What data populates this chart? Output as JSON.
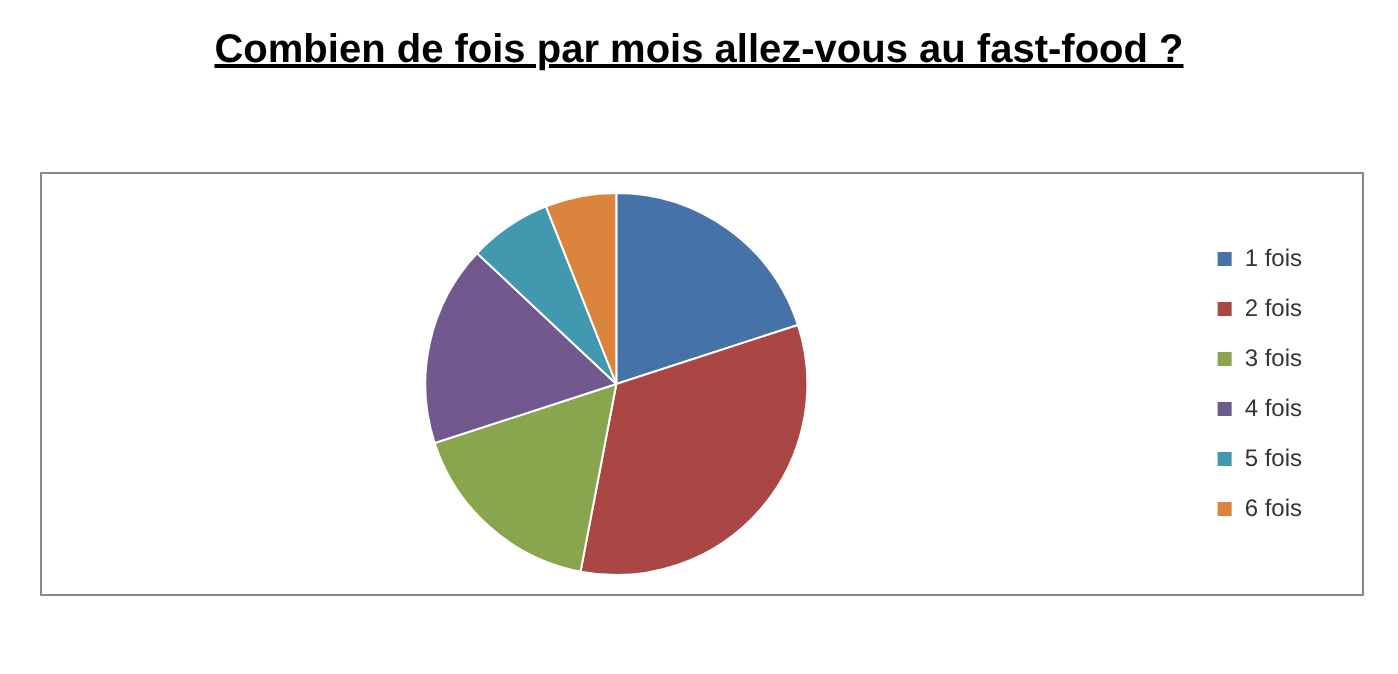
{
  "chart_data": {
    "type": "pie",
    "title": "Combien de fois par mois allez-vous au fast-food ?",
    "categories": [
      "1 fois",
      "2 fois",
      "3 fois",
      "4 fois",
      "5 fois",
      "6 fois"
    ],
    "values": [
      20,
      33,
      17,
      17,
      7,
      6
    ],
    "colors": [
      "#4572a7",
      "#aa4643",
      "#89a54e",
      "#71588f",
      "#4198af",
      "#db843d"
    ],
    "legend": "right"
  }
}
